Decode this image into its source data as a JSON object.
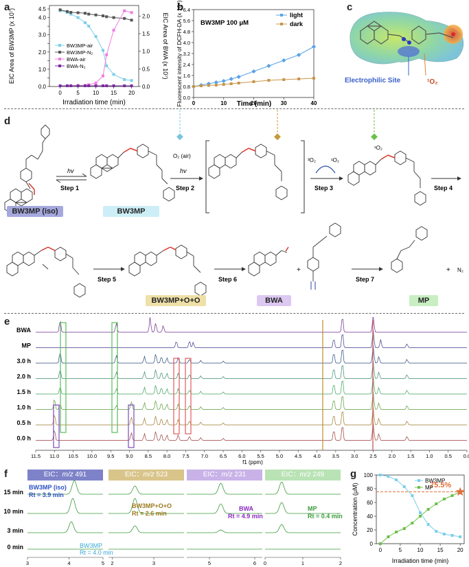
{
  "panels": {
    "a": "a",
    "b": "b",
    "c": "c",
    "d": "d",
    "e": "e",
    "f": "f",
    "g": "g"
  },
  "panel_a": {
    "ylabel_left": "EIC Area of BW3MP (x 10⁷)",
    "ylabel_right": "EIC Area of BWA (x 10⁷)",
    "xlabel": "Irradiation time (min)",
    "xticks": [
      "0",
      "5",
      "10",
      "15",
      "20"
    ],
    "yticks_left": [
      "0.0",
      "0.5",
      "1.0",
      "1.5",
      "2.0",
      "2.5",
      "3.0",
      "3.5",
      "4.0",
      "4.5"
    ],
    "yticks_right": [
      "0.0",
      "0.5",
      "1.0",
      "1.5",
      "2.0"
    ],
    "legend": [
      "BW3MP-air",
      "BW3MP-N₂",
      "BWA-air",
      "BWA-N₂"
    ],
    "colors": {
      "bw3mp_air": "#7ccfe8",
      "bw3mp_n2": "#555555",
      "bwa_air": "#f07ce0",
      "bwa_n2": "#7a2ca0"
    }
  },
  "panel_b": {
    "ylabel": "Fluorescent intensity of DCFH-DA (x 10⁶)",
    "xlabel": "Time (min)",
    "title": "BW3MP 100 μM",
    "xticks": [
      "0",
      "10",
      "20",
      "30",
      "40"
    ],
    "yticks": [
      "0.0",
      "0.8",
      "1.6",
      "2.4",
      "3.2",
      "4.0",
      "4.8",
      "5.6",
      "6.4"
    ],
    "legend": [
      "light",
      "dark"
    ],
    "colors": {
      "light": "#5aa3e6",
      "dark": "#c8954a"
    }
  },
  "panel_c": {
    "label_electrophilic": "Electrophilic Site",
    "label_o2": "¹O₂"
  },
  "panel_d": {
    "steps": [
      "Step 1",
      "Step 2",
      "Step 3",
      "Step 4",
      "Step 5",
      "Step 6",
      "Step 7"
    ],
    "hv": "hv",
    "o2_air": "O₂ (air)",
    "o2_singlet_a": "³O₂",
    "o2_singlet_b": "¹O₂",
    "singlet_near": "¹O₂",
    "plus": "+",
    "n2": "N₂",
    "tags": [
      "BW3MP (iso)",
      "BW3MP",
      "BW3MP+O+O",
      "BWA",
      "MP"
    ]
  },
  "panel_e": {
    "rows": [
      "BWA",
      "MP",
      "3.0 h",
      "2.0 h",
      "1.5 h",
      "1.0 h",
      "0.5 h",
      "0.0 h"
    ],
    "xticks": [
      "11.5",
      "11.0",
      "10.5",
      "10.0",
      "9.5",
      "9.0",
      "8.5",
      "8.0",
      "7.5",
      "7.0",
      "6.5",
      "6.0",
      "5.5",
      "5.0",
      "4.5",
      "4.0",
      "3.5",
      "3.0",
      "2.5",
      "2.0",
      "1.5",
      "1.0",
      "0.5",
      "0.0"
    ],
    "xlabel": "f1 (ppm)",
    "colors": [
      "#6a2a8e",
      "#3a3a8a",
      "#2a4a7a",
      "#3a8a6a",
      "#3aa05a",
      "#5a9a3a",
      "#9a7a2a",
      "#9a3a3a"
    ]
  },
  "panel_f": {
    "headers": [
      {
        "eic": "EIC：",
        "mz": "m/z",
        "val": " 491",
        "bg": "#7e82c8",
        "fg": "#ffffff"
      },
      {
        "eic": "EIC：",
        "mz": "m/z",
        "val": " 523",
        "bg": "#d9c48a",
        "fg": "#ffffff"
      },
      {
        "eic": "EIC：",
        "mz": "m/z",
        "val": " 231",
        "bg": "#c9b2e8",
        "fg": "#ffffff"
      },
      {
        "eic": "EIC：",
        "mz": "m/z",
        "val": " 249",
        "bg": "#b9e3b5",
        "fg": "#ffffff"
      }
    ],
    "rows": [
      "15 min",
      "10 min",
      "3 min",
      "0 min"
    ],
    "ann_bw3mp_iso": "BW3MP (iso)",
    "ann_bw3mp_iso_rt": "Rt = 3.9 min",
    "ann_bw3mp": "BW3MP",
    "ann_bw3mp_rt": "Rt = 4.0 min",
    "ann_o": "BW3MP+O+O",
    "ann_o_rt": "Rt = 2.6 min",
    "ann_bwa": "BWA",
    "ann_bwa_rt": "Rt = 4.9 min",
    "ann_mp": "MP",
    "ann_mp_rt": "Rt = 0.4 min",
    "ticks1": [
      "3",
      "4",
      "5"
    ],
    "ticks2": [
      "2",
      "3"
    ],
    "ticks3": [
      "5",
      "6"
    ],
    "ticks4": [
      "0",
      "1",
      "2"
    ]
  },
  "panel_g": {
    "ylabel": "Concentration (μM)",
    "xlabel": "Irradiation time (min)",
    "xticks": [
      "0",
      "5",
      "10",
      "15",
      "20"
    ],
    "yticks": [
      "0",
      "20",
      "40",
      "60",
      "80",
      "100"
    ],
    "legend": [
      "BW3MP",
      "MP"
    ],
    "annotation": "75.5%",
    "colors": {
      "bw3mp": "#7ccfe8",
      "mp": "#6cc04a",
      "star": "#e0703a"
    }
  },
  "chart_data": [
    {
      "type": "line",
      "x": [
        0,
        2,
        3,
        5,
        7,
        8,
        10,
        12,
        13,
        15,
        18,
        20
      ],
      "series": [
        {
          "name": "BW3MP-air",
          "axis": "left",
          "values": [
            4.4,
            4.3,
            4.2,
            4.0,
            3.7,
            3.5,
            2.9,
            2.1,
            1.2,
            0.7,
            0.4,
            0.35
          ]
        },
        {
          "name": "BW3MP-N₂",
          "axis": "left",
          "values": [
            4.45,
            4.35,
            4.3,
            4.28,
            4.25,
            4.2,
            4.15,
            4.1,
            4.05,
            4.0,
            3.95,
            3.85
          ]
        },
        {
          "name": "BWA-air",
          "axis": "right",
          "values": [
            0.02,
            0.02,
            0.02,
            0.03,
            0.03,
            0.05,
            0.1,
            0.3,
            0.9,
            1.6,
            2.15,
            2.1
          ]
        },
        {
          "name": "BWA-N₂",
          "axis": "right",
          "values": [
            0.02,
            0.02,
            0.02,
            0.02,
            0.02,
            0.02,
            0.02,
            0.02,
            0.02,
            0.02,
            0.02,
            0.02
          ]
        }
      ],
      "xlim": [
        -3,
        22
      ],
      "ylim_left": [
        0,
        4.7
      ],
      "ylim_right": [
        0,
        2.3
      ],
      "xlabel": "Irradiation time (min)"
    },
    {
      "type": "line",
      "x": [
        0,
        2.5,
        5,
        7.5,
        10,
        12.5,
        15,
        20,
        25,
        30,
        35,
        40
      ],
      "series": [
        {
          "name": "light",
          "values": [
            0.8,
            0.9,
            1.0,
            1.1,
            1.2,
            1.35,
            1.5,
            1.9,
            2.3,
            2.7,
            3.1,
            3.7
          ]
        },
        {
          "name": "dark",
          "values": [
            0.8,
            0.85,
            0.88,
            0.9,
            0.95,
            1.0,
            1.05,
            1.15,
            1.25,
            1.3,
            1.35,
            1.4
          ]
        }
      ],
      "title": "BW3MP 100 μM",
      "xlim": [
        0,
        40
      ],
      "ylim": [
        0,
        6.4
      ],
      "xlabel": "Time (min)",
      "ylabel": "Fluorescent intensity of DCFH-DA (x 10⁶)"
    },
    {
      "type": "line",
      "x": [
        0,
        2,
        4,
        6,
        8,
        10,
        12,
        14,
        16,
        18,
        20
      ],
      "series": [
        {
          "name": "BW3MP",
          "values": [
            100,
            98,
            93,
            83,
            70,
            45,
            28,
            18,
            14,
            12,
            10
          ]
        },
        {
          "name": "MP",
          "values": [
            0,
            10,
            17,
            22,
            30,
            40,
            50,
            58,
            65,
            70,
            75.5
          ]
        }
      ],
      "xlim": [
        -1,
        21
      ],
      "ylim": [
        0,
        100
      ],
      "xlabel": "Irradiation time (min)",
      "ylabel": "Concentration (μM)"
    }
  ]
}
